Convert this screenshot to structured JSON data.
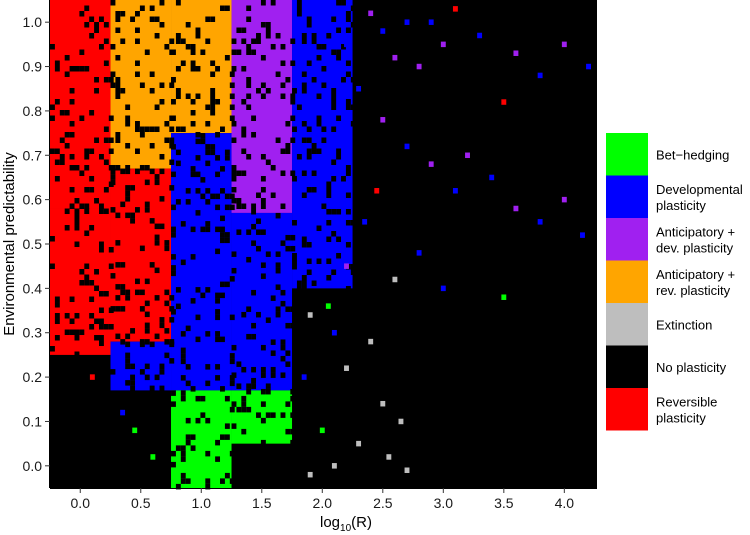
{
  "chart_data": {
    "type": "heatmap",
    "xlabel": "log",
    "xlabel_sub": "10",
    "xlabel_tail": "(R)",
    "ylabel": "Environmental predictability",
    "xlim": [
      -0.25,
      4.27
    ],
    "ylim": [
      -0.05,
      1.05
    ],
    "x_ticks": [
      {
        "value": 0.0,
        "label": "0.0"
      },
      {
        "value": 0.5,
        "label": "0.5"
      },
      {
        "value": 1.0,
        "label": "1.0"
      },
      {
        "value": 1.5,
        "label": "1.5"
      },
      {
        "value": 2.0,
        "label": "2.0"
      },
      {
        "value": 2.5,
        "label": "2.5"
      },
      {
        "value": 3.0,
        "label": "3.0"
      },
      {
        "value": 3.5,
        "label": "3.5"
      },
      {
        "value": 4.0,
        "label": "4.0"
      }
    ],
    "y_ticks": [
      {
        "value": 0.0,
        "label": "0.0"
      },
      {
        "value": 0.1,
        "label": "0.1"
      },
      {
        "value": 0.2,
        "label": "0.2"
      },
      {
        "value": 0.3,
        "label": "0.3"
      },
      {
        "value": 0.4,
        "label": "0.4"
      },
      {
        "value": 0.5,
        "label": "0.5"
      },
      {
        "value": 0.6,
        "label": "0.6"
      },
      {
        "value": 0.7,
        "label": "0.7"
      },
      {
        "value": 0.8,
        "label": "0.8"
      },
      {
        "value": 0.9,
        "label": "0.9"
      },
      {
        "value": 1.0,
        "label": "1.0"
      }
    ],
    "grid": false,
    "legend_position": "right",
    "categories": [
      {
        "key": "bet",
        "label_lines": [
          "Bet−hedging"
        ],
        "color": "#00ff00"
      },
      {
        "key": "dev",
        "label_lines": [
          "Developmental",
          "plasticity"
        ],
        "color": "#0000ff"
      },
      {
        "key": "ant_dev",
        "label_lines": [
          "Anticipatory +",
          "dev. plasticity"
        ],
        "color": "#a020f0"
      },
      {
        "key": "ant_rev",
        "label_lines": [
          "Anticipatory +",
          "rev. plasticity"
        ],
        "color": "#ffa500"
      },
      {
        "key": "ext",
        "label_lines": [
          "Extinction"
        ],
        "color": "#bebebe"
      },
      {
        "key": "none",
        "label_lines": [
          "No plasticity"
        ],
        "color": "#000000"
      },
      {
        "key": "rev",
        "label_lines": [
          "Reversible",
          "plasticity"
        ],
        "color": "#ff0000"
      }
    ],
    "regions": [
      {
        "x": [
          -0.25,
          0.25
        ],
        "y": [
          0.58,
          1.05
        ],
        "category": "rev"
      },
      {
        "x": [
          -0.25,
          0.25
        ],
        "y": [
          0.25,
          0.58
        ],
        "category": "rev"
      },
      {
        "x": [
          0.25,
          0.75
        ],
        "y": [
          0.67,
          1.05
        ],
        "category": "ant_rev"
      },
      {
        "x": [
          0.25,
          0.75
        ],
        "y": [
          0.28,
          0.67
        ],
        "category": "rev"
      },
      {
        "x": [
          0.25,
          0.75
        ],
        "y": [
          0.17,
          0.28
        ],
        "category": "dev"
      },
      {
        "x": [
          0.75,
          1.25
        ],
        "y": [
          0.75,
          1.05
        ],
        "category": "ant_rev"
      },
      {
        "x": [
          0.75,
          1.25
        ],
        "y": [
          0.17,
          0.75
        ],
        "category": "dev"
      },
      {
        "x": [
          0.75,
          1.25
        ],
        "y": [
          -0.05,
          0.17
        ],
        "category": "bet"
      },
      {
        "x": [
          1.25,
          1.75
        ],
        "y": [
          0.57,
          1.05
        ],
        "category": "ant_dev"
      },
      {
        "x": [
          1.25,
          1.75
        ],
        "y": [
          0.17,
          0.57
        ],
        "category": "dev"
      },
      {
        "x": [
          1.25,
          1.75
        ],
        "y": [
          0.05,
          0.17
        ],
        "category": "bet"
      },
      {
        "x": [
          1.75,
          2.25
        ],
        "y": [
          0.4,
          1.05
        ],
        "category": "dev"
      }
    ],
    "scatter": [
      {
        "x": 2.0,
        "y": 1.0,
        "category": "dev"
      },
      {
        "x": 2.2,
        "y": 0.95,
        "category": "dev"
      },
      {
        "x": 2.4,
        "y": 1.02,
        "category": "ant_dev"
      },
      {
        "x": 2.5,
        "y": 0.98,
        "category": "dev"
      },
      {
        "x": 2.6,
        "y": 0.92,
        "category": "ant_dev"
      },
      {
        "x": 2.7,
        "y": 1.0,
        "category": "dev"
      },
      {
        "x": 2.8,
        "y": 0.9,
        "category": "ant_dev"
      },
      {
        "x": 2.9,
        "y": 1.0,
        "category": "dev"
      },
      {
        "x": 3.0,
        "y": 0.95,
        "category": "ant_dev"
      },
      {
        "x": 3.1,
        "y": 1.03,
        "category": "rev"
      },
      {
        "x": 3.3,
        "y": 0.97,
        "category": "dev"
      },
      {
        "x": 3.5,
        "y": 0.82,
        "category": "rev"
      },
      {
        "x": 3.6,
        "y": 0.93,
        "category": "ant_dev"
      },
      {
        "x": 3.8,
        "y": 0.88,
        "category": "dev"
      },
      {
        "x": 4.0,
        "y": 0.95,
        "category": "ant_dev"
      },
      {
        "x": 4.2,
        "y": 0.9,
        "category": "dev"
      },
      {
        "x": 2.3,
        "y": 0.85,
        "category": "dev"
      },
      {
        "x": 2.5,
        "y": 0.78,
        "category": "ant_dev"
      },
      {
        "x": 2.7,
        "y": 0.72,
        "category": "dev"
      },
      {
        "x": 2.9,
        "y": 0.68,
        "category": "ant_dev"
      },
      {
        "x": 3.1,
        "y": 0.62,
        "category": "dev"
      },
      {
        "x": 3.2,
        "y": 0.7,
        "category": "ant_dev"
      },
      {
        "x": 3.4,
        "y": 0.65,
        "category": "dev"
      },
      {
        "x": 3.6,
        "y": 0.58,
        "category": "ant_dev"
      },
      {
        "x": 3.8,
        "y": 0.55,
        "category": "dev"
      },
      {
        "x": 4.0,
        "y": 0.6,
        "category": "ant_dev"
      },
      {
        "x": 4.15,
        "y": 0.52,
        "category": "dev"
      },
      {
        "x": 3.5,
        "y": 0.38,
        "category": "bet"
      },
      {
        "x": 2.6,
        "y": 0.42,
        "category": "ext"
      },
      {
        "x": 2.1,
        "y": 0.3,
        "category": "dev"
      },
      {
        "x": 2.4,
        "y": 0.28,
        "category": "ext"
      },
      {
        "x": 2.2,
        "y": 0.22,
        "category": "ext"
      },
      {
        "x": 2.5,
        "y": 0.14,
        "category": "ext"
      },
      {
        "x": 2.65,
        "y": 0.1,
        "category": "ext"
      },
      {
        "x": 2.0,
        "y": 0.08,
        "category": "bet"
      },
      {
        "x": 2.3,
        "y": 0.05,
        "category": "ext"
      },
      {
        "x": 2.55,
        "y": 0.02,
        "category": "ext"
      },
      {
        "x": 1.9,
        "y": -0.02,
        "category": "ext"
      },
      {
        "x": 2.1,
        "y": 0.0,
        "category": "ext"
      },
      {
        "x": 2.7,
        "y": -0.01,
        "category": "ext"
      },
      {
        "x": 1.9,
        "y": 0.34,
        "category": "ext"
      },
      {
        "x": 2.05,
        "y": 0.36,
        "category": "bet"
      },
      {
        "x": 1.85,
        "y": 0.2,
        "category": "dev"
      },
      {
        "x": 2.2,
        "y": 0.45,
        "category": "ant_dev"
      },
      {
        "x": 2.35,
        "y": 0.55,
        "category": "dev"
      },
      {
        "x": 2.45,
        "y": 0.62,
        "category": "rev"
      },
      {
        "x": 2.8,
        "y": 0.48,
        "category": "dev"
      },
      {
        "x": 3.0,
        "y": 0.4,
        "category": "dev"
      },
      {
        "x": 0.45,
        "y": 0.08,
        "category": "bet"
      },
      {
        "x": 0.35,
        "y": 0.12,
        "category": "dev"
      },
      {
        "x": 0.1,
        "y": 0.2,
        "category": "rev"
      },
      {
        "x": 0.6,
        "y": 0.02,
        "category": "bet"
      }
    ]
  }
}
